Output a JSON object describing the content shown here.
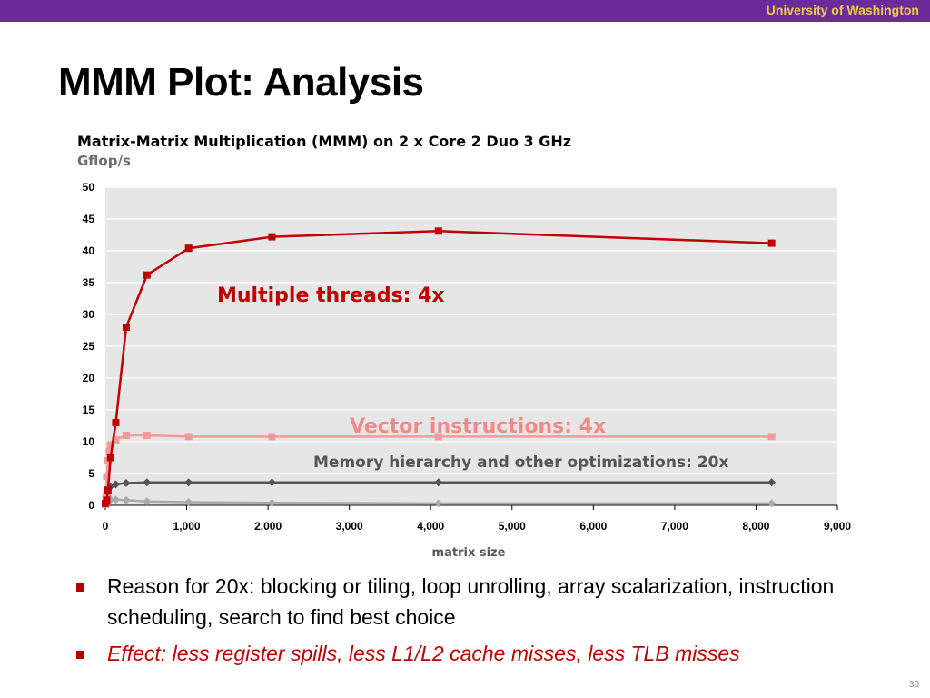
{
  "header": {
    "institution": "University of Washington"
  },
  "slide": {
    "title": "MMM Plot: Analysis",
    "page_number": "30"
  },
  "chart_data": {
    "type": "line",
    "title": "Matrix-Matrix Multiplication (MMM) on 2 x Core 2 Duo 3 GHz",
    "ylabel": "Gflop/s",
    "xlabel": "matrix size",
    "xlim": [
      0,
      9000
    ],
    "ylim": [
      0,
      50
    ],
    "x_ticks": [
      "0",
      "1,000",
      "2,000",
      "3,000",
      "4,000",
      "5,000",
      "6,000",
      "7,000",
      "8,000",
      "9,000"
    ],
    "y_ticks": [
      "0",
      "5",
      "10",
      "15",
      "20",
      "25",
      "30",
      "35",
      "40",
      "45",
      "50"
    ],
    "grid": true,
    "series": [
      {
        "color": "#c00000",
        "marker": "square",
        "x": [
          0,
          16,
          32,
          64,
          128,
          256,
          512,
          1024,
          2048,
          4096,
          8192
        ],
        "y": [
          0.3,
          0.8,
          2.4,
          7.5,
          13,
          28,
          36.2,
          40.4,
          42.2,
          43.1,
          41.2
        ]
      },
      {
        "color": "#f59a9a",
        "marker": "square",
        "x": [
          0,
          8,
          16,
          32,
          48,
          64,
          128,
          256,
          512,
          1024,
          2048,
          4096,
          8192
        ],
        "y": [
          0.2,
          1.5,
          4.5,
          7,
          8.5,
          9.5,
          10.3,
          11,
          11,
          10.8,
          10.8,
          10.8,
          10.8
        ],
        "annotation": "Vector instructions: 4x"
      },
      {
        "color": "#555555",
        "marker": "diamond",
        "x": [
          0,
          16,
          32,
          64,
          128,
          256,
          512,
          1024,
          2048,
          4096,
          8192
        ],
        "y": [
          0.3,
          1.5,
          2.5,
          3,
          3.3,
          3.5,
          3.6,
          3.6,
          3.6,
          3.6,
          3.6
        ]
      },
      {
        "color": "#aaaaaa",
        "marker": "diamond",
        "x": [
          0,
          16,
          32,
          64,
          128,
          256,
          512,
          1024,
          2048,
          4096,
          8192
        ],
        "y": [
          0.3,
          0.6,
          0.8,
          0.9,
          0.9,
          0.8,
          0.6,
          0.5,
          0.4,
          0.3,
          0.3
        ]
      }
    ],
    "annotations": [
      {
        "text": "Multiple threads: 4x",
        "color": "#c00000",
        "x": 1350,
        "y": 32
      },
      {
        "text": "Vector instructions: 4x",
        "color": "#f08a8a",
        "x": 3000,
        "y": 12.2
      },
      {
        "text": "Memory hierarchy and other optimizations: 20x",
        "color": "#555555",
        "x": 5000,
        "y": 6.5
      }
    ]
  },
  "bullets": [
    "Reason for 20x: blocking or tiling, loop unrolling, array scalarization, instruction scheduling, search to find best choice",
    "Effect: less register spills, less L1/L2 cache misses, less TLB misses"
  ]
}
